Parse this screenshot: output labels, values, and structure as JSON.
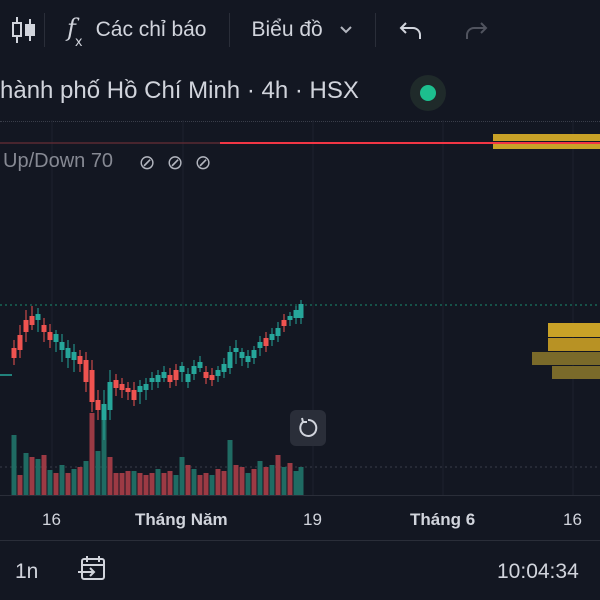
{
  "toolbar": {
    "indicators_label": "Các chỉ báo",
    "chart_type_label": "Biểu đồ"
  },
  "legend": {
    "title": "hành phố Hồ Chí Minh · 4h · HSX",
    "study_label": "Up/Down 70"
  },
  "time_axis": {
    "ticks": [
      {
        "label": "16",
        "bold": false
      },
      {
        "label": "Tháng Năm",
        "bold": true
      },
      {
        "label": "19",
        "bold": false
      },
      {
        "label": "Tháng 6",
        "bold": true
      },
      {
        "label": "16",
        "bold": false
      }
    ]
  },
  "bottom_bar": {
    "interval": "1n",
    "clock": "10:04:34"
  },
  "colors": {
    "up": "#26a69a",
    "down": "#ef5350",
    "up_volume": "#1f6b63",
    "down_volume": "#9c3a44",
    "resistance": "#f23645",
    "volume_profile": "#c9a227",
    "volume_profile_dim": "#7a6a2a"
  },
  "icons": {
    "chart_style": "candles-icon",
    "indicators": "fx-icon",
    "undo": "undo-icon",
    "redo": "redo-icon",
    "goto_date": "calendar-arrow-icon",
    "reset": "reset-icon",
    "status": "status-dot-icon"
  }
}
